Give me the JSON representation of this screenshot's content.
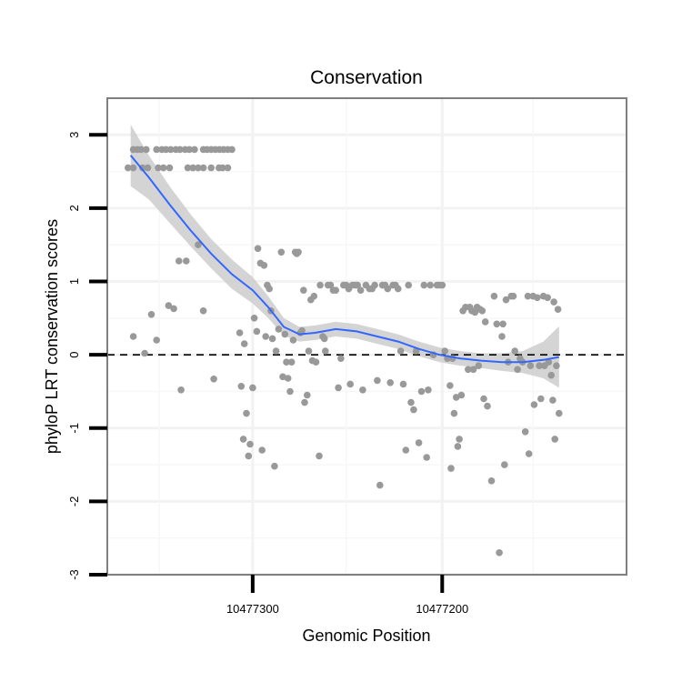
{
  "chart_data": {
    "type": "scatter",
    "title": "Conservation",
    "xlabel": "Genomic Position",
    "ylabel": "phyloP LRT conservation scores",
    "ylim": [
      -3,
      3.5
    ],
    "y_ticks": [
      {
        "value": 3,
        "label": "3"
      },
      {
        "value": 2,
        "label": "2"
      },
      {
        "value": 1,
        "label": "1"
      },
      {
        "value": 0,
        "label": "0"
      },
      {
        "value": -1,
        "label": "-1"
      },
      {
        "value": -2,
        "label": "-2"
      },
      {
        "value": -3,
        "label": "-3"
      }
    ],
    "x_ticks": [
      {
        "value": 0.28,
        "label": "10477300"
      },
      {
        "value": 0.645,
        "label": "10477200"
      }
    ],
    "reference_line": {
      "y": 0,
      "style": "dashed"
    },
    "colors": {
      "points": "#999999",
      "smooth": "#3366ff",
      "ribbon": "#cccccc",
      "border": "#7f7f7f"
    },
    "points": [
      [
        0.04,
        2.55
      ],
      [
        0.05,
        2.55
      ],
      [
        0.068,
        2.55
      ],
      [
        0.078,
        2.55
      ],
      [
        0.098,
        2.55
      ],
      [
        0.108,
        2.55
      ],
      [
        0.12,
        2.55
      ],
      [
        0.155,
        2.55
      ],
      [
        0.165,
        2.55
      ],
      [
        0.175,
        2.55
      ],
      [
        0.185,
        2.55
      ],
      [
        0.2,
        2.55
      ],
      [
        0.215,
        2.55
      ],
      [
        0.222,
        2.55
      ],
      [
        0.232,
        2.55
      ],
      [
        0.05,
        2.8
      ],
      [
        0.058,
        2.8
      ],
      [
        0.065,
        2.8
      ],
      [
        0.075,
        2.8
      ],
      [
        0.095,
        2.8
      ],
      [
        0.105,
        2.8
      ],
      [
        0.113,
        2.8
      ],
      [
        0.122,
        2.8
      ],
      [
        0.132,
        2.8
      ],
      [
        0.14,
        2.8
      ],
      [
        0.15,
        2.8
      ],
      [
        0.158,
        2.8
      ],
      [
        0.168,
        2.8
      ],
      [
        0.185,
        2.8
      ],
      [
        0.192,
        2.8
      ],
      [
        0.2,
        2.8
      ],
      [
        0.208,
        2.8
      ],
      [
        0.216,
        2.8
      ],
      [
        0.224,
        2.8
      ],
      [
        0.232,
        2.8
      ],
      [
        0.24,
        2.8
      ],
      [
        0.05,
        0.25
      ],
      [
        0.072,
        0.02
      ],
      [
        0.085,
        0.55
      ],
      [
        0.095,
        0.2
      ],
      [
        0.118,
        0.67
      ],
      [
        0.128,
        0.63
      ],
      [
        0.138,
        1.28
      ],
      [
        0.142,
        -0.48
      ],
      [
        0.152,
        1.28
      ],
      [
        0.175,
        1.5
      ],
      [
        0.185,
        0.6
      ],
      [
        0.205,
        -0.33
      ],
      [
        0.255,
        0.3
      ],
      [
        0.258,
        -0.43
      ],
      [
        0.262,
        -1.15
      ],
      [
        0.264,
        0.15
      ],
      [
        0.268,
        -0.8
      ],
      [
        0.272,
        -1.38
      ],
      [
        0.275,
        -1.22
      ],
      [
        0.28,
        -0.45
      ],
      [
        0.283,
        0.5
      ],
      [
        0.288,
        0.32
      ],
      [
        0.29,
        1.45
      ],
      [
        0.295,
        1.25
      ],
      [
        0.298,
        -1.3
      ],
      [
        0.302,
        1.22
      ],
      [
        0.305,
        0.25
      ],
      [
        0.308,
        0.95
      ],
      [
        0.312,
        0.9
      ],
      [
        0.315,
        0.6
      ],
      [
        0.318,
        0.22
      ],
      [
        0.322,
        -1.52
      ],
      [
        0.325,
        0.05
      ],
      [
        0.33,
        0.35
      ],
      [
        0.335,
        1.4
      ],
      [
        0.338,
        -0.3
      ],
      [
        0.342,
        0.28
      ],
      [
        0.345,
        -0.1
      ],
      [
        0.348,
        -0.32
      ],
      [
        0.352,
        -0.5
      ],
      [
        0.355,
        -0.1
      ],
      [
        0.358,
        0.2
      ],
      [
        0.362,
        1.4
      ],
      [
        0.365,
        1.38
      ],
      [
        0.368,
        1.4
      ],
      [
        0.372,
        0.3
      ],
      [
        0.375,
        0.33
      ],
      [
        0.378,
        0.88
      ],
      [
        0.38,
        -0.65
      ],
      [
        0.385,
        -0.55
      ],
      [
        0.388,
        0.05
      ],
      [
        0.392,
        0.75
      ],
      [
        0.395,
        -0.08
      ],
      [
        0.398,
        0.8
      ],
      [
        0.402,
        -0.1
      ],
      [
        0.408,
        -1.38
      ],
      [
        0.41,
        0.95
      ],
      [
        0.415,
        0.25
      ],
      [
        0.418,
        0.22
      ],
      [
        0.42,
        0.05
      ],
      [
        0.425,
        0.95
      ],
      [
        0.43,
        0.95
      ],
      [
        0.435,
        0.88
      ],
      [
        0.44,
        0.88
      ],
      [
        0.445,
        -0.45
      ],
      [
        0.45,
        -0.05
      ],
      [
        0.455,
        0.95
      ],
      [
        0.46,
        0.95
      ],
      [
        0.465,
        0.9
      ],
      [
        0.468,
        -0.4
      ],
      [
        0.472,
        0.95
      ],
      [
        0.478,
        0.95
      ],
      [
        0.482,
        0.95
      ],
      [
        0.488,
        0.88
      ],
      [
        0.492,
        -0.48
      ],
      [
        0.498,
        0.95
      ],
      [
        0.505,
        0.9
      ],
      [
        0.51,
        0.9
      ],
      [
        0.515,
        0.95
      ],
      [
        0.52,
        -0.35
      ],
      [
        0.525,
        -1.78
      ],
      [
        0.53,
        0.95
      ],
      [
        0.535,
        0.95
      ],
      [
        0.54,
        0.9
      ],
      [
        0.545,
        -0.38
      ],
      [
        0.55,
        0.95
      ],
      [
        0.555,
        0.95
      ],
      [
        0.56,
        0.9
      ],
      [
        0.565,
        0.05
      ],
      [
        0.57,
        -0.4
      ],
      [
        0.575,
        -1.3
      ],
      [
        0.58,
        0.95
      ],
      [
        0.585,
        -0.65
      ],
      [
        0.59,
        -0.75
      ],
      [
        0.595,
        0.05
      ],
      [
        0.6,
        -1.2
      ],
      [
        0.605,
        -0.5
      ],
      [
        0.61,
        0.95
      ],
      [
        0.615,
        -1.4
      ],
      [
        0.618,
        -0.48
      ],
      [
        0.622,
        0.95
      ],
      [
        0.628,
        0.0
      ],
      [
        0.635,
        0.95
      ],
      [
        0.64,
        0.95
      ],
      [
        0.645,
        0.95
      ],
      [
        0.65,
        0.05
      ],
      [
        0.655,
        -0.05
      ],
      [
        0.66,
        -0.42
      ],
      [
        0.662,
        -1.55
      ],
      [
        0.665,
        -0.05
      ],
      [
        0.668,
        -0.8
      ],
      [
        0.672,
        -0.58
      ],
      [
        0.675,
        -1.25
      ],
      [
        0.678,
        -1.15
      ],
      [
        0.682,
        -0.55
      ],
      [
        0.685,
        0.6
      ],
      [
        0.69,
        0.65
      ],
      [
        0.695,
        -0.2
      ],
      [
        0.698,
        0.65
      ],
      [
        0.702,
        0.6
      ],
      [
        0.705,
        -0.2
      ],
      [
        0.708,
        0.58
      ],
      [
        0.712,
        0.65
      ],
      [
        0.715,
        -0.15
      ],
      [
        0.718,
        0.62
      ],
      [
        0.722,
        0.6
      ],
      [
        0.725,
        -0.6
      ],
      [
        0.728,
        0.45
      ],
      [
        0.732,
        -0.7
      ],
      [
        0.74,
        -1.72
      ],
      [
        0.745,
        0.8
      ],
      [
        0.75,
        0.42
      ],
      [
        0.755,
        -2.7
      ],
      [
        0.76,
        0.25
      ],
      [
        0.762,
        0.42
      ],
      [
        0.765,
        -1.5
      ],
      [
        0.768,
        0.75
      ],
      [
        0.772,
        -0.1
      ],
      [
        0.778,
        0.8
      ],
      [
        0.782,
        0.8
      ],
      [
        0.785,
        0.05
      ],
      [
        0.79,
        -0.2
      ],
      [
        0.795,
        -0.05
      ],
      [
        0.8,
        -0.1
      ],
      [
        0.805,
        -1.05
      ],
      [
        0.81,
        0.8
      ],
      [
        0.812,
        -1.35
      ],
      [
        0.815,
        -0.15
      ],
      [
        0.82,
        0.8
      ],
      [
        0.822,
        -0.68
      ],
      [
        0.828,
        0.78
      ],
      [
        0.832,
        -0.15
      ],
      [
        0.835,
        -0.6
      ],
      [
        0.84,
        0.8
      ],
      [
        0.842,
        -0.15
      ],
      [
        0.848,
        0.78
      ],
      [
        0.85,
        -0.1
      ],
      [
        0.855,
        -0.28
      ],
      [
        0.858,
        -0.62
      ],
      [
        0.86,
        0.72
      ],
      [
        0.862,
        -1.15
      ],
      [
        0.865,
        -0.15
      ],
      [
        0.868,
        0.62
      ],
      [
        0.87,
        -0.8
      ]
    ],
    "smooth": [
      [
        0.045,
        2.72
      ],
      [
        0.08,
        2.42
      ],
      [
        0.12,
        2.05
      ],
      [
        0.16,
        1.7
      ],
      [
        0.2,
        1.38
      ],
      [
        0.24,
        1.1
      ],
      [
        0.28,
        0.88
      ],
      [
        0.31,
        0.65
      ],
      [
        0.34,
        0.38
      ],
      [
        0.37,
        0.28
      ],
      [
        0.4,
        0.3
      ],
      [
        0.44,
        0.35
      ],
      [
        0.48,
        0.32
      ],
      [
        0.52,
        0.25
      ],
      [
        0.56,
        0.18
      ],
      [
        0.6,
        0.08
      ],
      [
        0.64,
        0.0
      ],
      [
        0.68,
        -0.05
      ],
      [
        0.72,
        -0.08
      ],
      [
        0.76,
        -0.1
      ],
      [
        0.8,
        -0.1
      ],
      [
        0.84,
        -0.07
      ],
      [
        0.87,
        -0.03
      ]
    ],
    "ribbon_half_width": [
      0.42,
      0.3,
      0.25,
      0.22,
      0.2,
      0.2,
      0.18,
      0.15,
      0.12,
      0.1,
      0.1,
      0.1,
      0.1,
      0.1,
      0.1,
      0.1,
      0.1,
      0.1,
      0.1,
      0.12,
      0.15,
      0.25,
      0.42
    ]
  }
}
